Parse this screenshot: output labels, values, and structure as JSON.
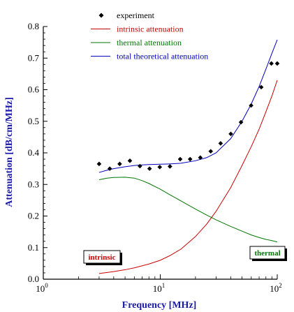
{
  "chart_data": {
    "type": "scatter",
    "xlabel": "Frequency [MHz]",
    "ylabel": "Attenuation [dB/cm/MHz]",
    "xscale": "log",
    "xlim": [
      1,
      100
    ],
    "ylim": [
      0.0,
      0.8
    ],
    "x_tick_labels": [
      {
        "base": "10",
        "exp": "0",
        "value": 1
      },
      {
        "base": "10",
        "exp": "1",
        "value": 10
      },
      {
        "base": "10",
        "exp": "2",
        "value": 100
      }
    ],
    "y_ticks": [
      "0.0",
      "0.1",
      "0.2",
      "0.3",
      "0.4",
      "0.5",
      "0.6",
      "0.7",
      "0.8"
    ],
    "y_tick_values": [
      0.0,
      0.1,
      0.2,
      0.3,
      0.4,
      0.5,
      0.6,
      0.7,
      0.8
    ],
    "legend_position": "top-center",
    "series": [
      {
        "name": "experiment",
        "kind": "points",
        "color": "#000000",
        "x": [
          3.0,
          3.7,
          4.5,
          5.5,
          6.7,
          8.1,
          9.9,
          12.1,
          14.8,
          18.0,
          22.0,
          27.0,
          32.8,
          40.1,
          49.0,
          59.8,
          73.0,
          89.1,
          100.0
        ],
        "y": [
          0.365,
          0.35,
          0.365,
          0.375,
          0.358,
          0.35,
          0.355,
          0.357,
          0.38,
          0.38,
          0.385,
          0.405,
          0.43,
          0.46,
          0.497,
          0.55,
          0.608,
          0.683,
          0.683
        ]
      },
      {
        "name": "intrinsic attenuation",
        "kind": "line",
        "color": "#cc0000",
        "x": [
          3,
          4,
          5,
          6,
          8,
          10,
          12,
          15,
          20,
          25,
          30,
          40,
          50,
          60,
          70,
          80,
          90,
          100
        ],
        "y": [
          0.018,
          0.024,
          0.03,
          0.036,
          0.048,
          0.06,
          0.074,
          0.095,
          0.135,
          0.175,
          0.215,
          0.29,
          0.36,
          0.42,
          0.475,
          0.53,
          0.58,
          0.63
        ]
      },
      {
        "name": "thermal attenuation",
        "kind": "line",
        "color": "#007700",
        "x": [
          3,
          3.5,
          4,
          5,
          6,
          7,
          8,
          10,
          12,
          15,
          20,
          25,
          30,
          40,
          50,
          60,
          70,
          80,
          90,
          100
        ],
        "y": [
          0.315,
          0.32,
          0.322,
          0.323,
          0.32,
          0.312,
          0.303,
          0.285,
          0.268,
          0.248,
          0.222,
          0.203,
          0.188,
          0.167,
          0.152,
          0.14,
          0.132,
          0.126,
          0.122,
          0.118
        ]
      },
      {
        "name": "total theoretical attenuation",
        "kind": "line",
        "color": "#0000bb",
        "x": [
          3,
          3.5,
          4,
          5,
          6,
          7,
          8,
          10,
          12,
          15,
          20,
          25,
          30,
          40,
          50,
          60,
          70,
          80,
          90,
          100
        ],
        "y": [
          0.338,
          0.345,
          0.35,
          0.356,
          0.36,
          0.362,
          0.363,
          0.364,
          0.365,
          0.367,
          0.375,
          0.385,
          0.4,
          0.445,
          0.5,
          0.555,
          0.61,
          0.665,
          0.715,
          0.758
        ]
      }
    ],
    "annotations": [
      {
        "text": "intrinsic",
        "color": "#cc0000",
        "box_color": "#000000"
      },
      {
        "text": "thermal",
        "color": "#007700",
        "box_color": "#000000"
      }
    ]
  }
}
